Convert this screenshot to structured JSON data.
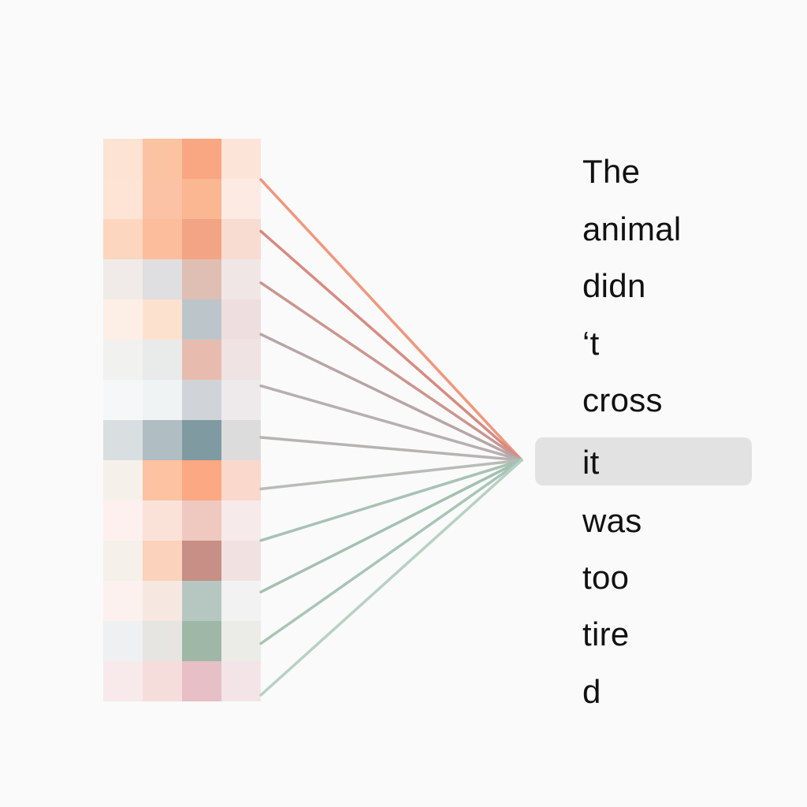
{
  "tokens": [
    "The",
    "animal",
    "didn",
    "‘t",
    "cross",
    "it",
    "was",
    "too",
    "tire",
    "d"
  ],
  "selected_token": "it",
  "heatmap_colors": [
    [
      "#fde3d3",
      "#fcc3a2",
      "#f9a682",
      "#fde4d9"
    ],
    [
      "#fde4d5",
      "#fbc2a5",
      "#fbb692",
      "#fdebe3"
    ],
    [
      "#fcd6bf",
      "#fbbd9c",
      "#f2a484",
      "#f8dcd2"
    ],
    [
      "#f0ebe8",
      "#dfdfe1",
      "#dfbeb4",
      "#f1e6e6"
    ],
    [
      "#fdefe6",
      "#fde1cf",
      "#bcc6ca",
      "#efdedf"
    ],
    [
      "#f1f1f0",
      "#e9eaea",
      "#e7bcaf",
      "#efe3e4"
    ],
    [
      "#f6f7f8",
      "#f0f3f4",
      "#d0d4d8",
      "#eee9ea"
    ],
    [
      "#d9dee1",
      "#b0bdc2",
      "#7f9ba1",
      "#dcdcdd"
    ],
    [
      "#f6f0ea",
      "#fcc2a1",
      "#fca882",
      "#fad8cc"
    ],
    [
      "#fdf0ee",
      "#fbe2d9",
      "#efc8c0",
      "#f6eaea"
    ],
    [
      "#f5f0ea",
      "#fbd2bc",
      "#c78f85",
      "#f1e2e1"
    ],
    [
      "#fcf1ef",
      "#f6e8e0",
      "#b5c7c0",
      "#f2f2f2"
    ],
    [
      "#eff0f1",
      "#e6e5e2",
      "#9fb7a7",
      "#ebebe8"
    ],
    [
      "#f8eaea",
      "#f5dddb",
      "#e7bfc6",
      "#f3e5e7"
    ]
  ],
  "connection_colors": [
    "#f0977c",
    "#d88a80",
    "#cc958e",
    "#b7a5a6",
    "#b8aeb1",
    "#b6b3b2",
    "#b9bcb6",
    "#a8c2b4",
    "#a3c0b1",
    "#a8c5b6",
    "#b7d1c4"
  ]
}
